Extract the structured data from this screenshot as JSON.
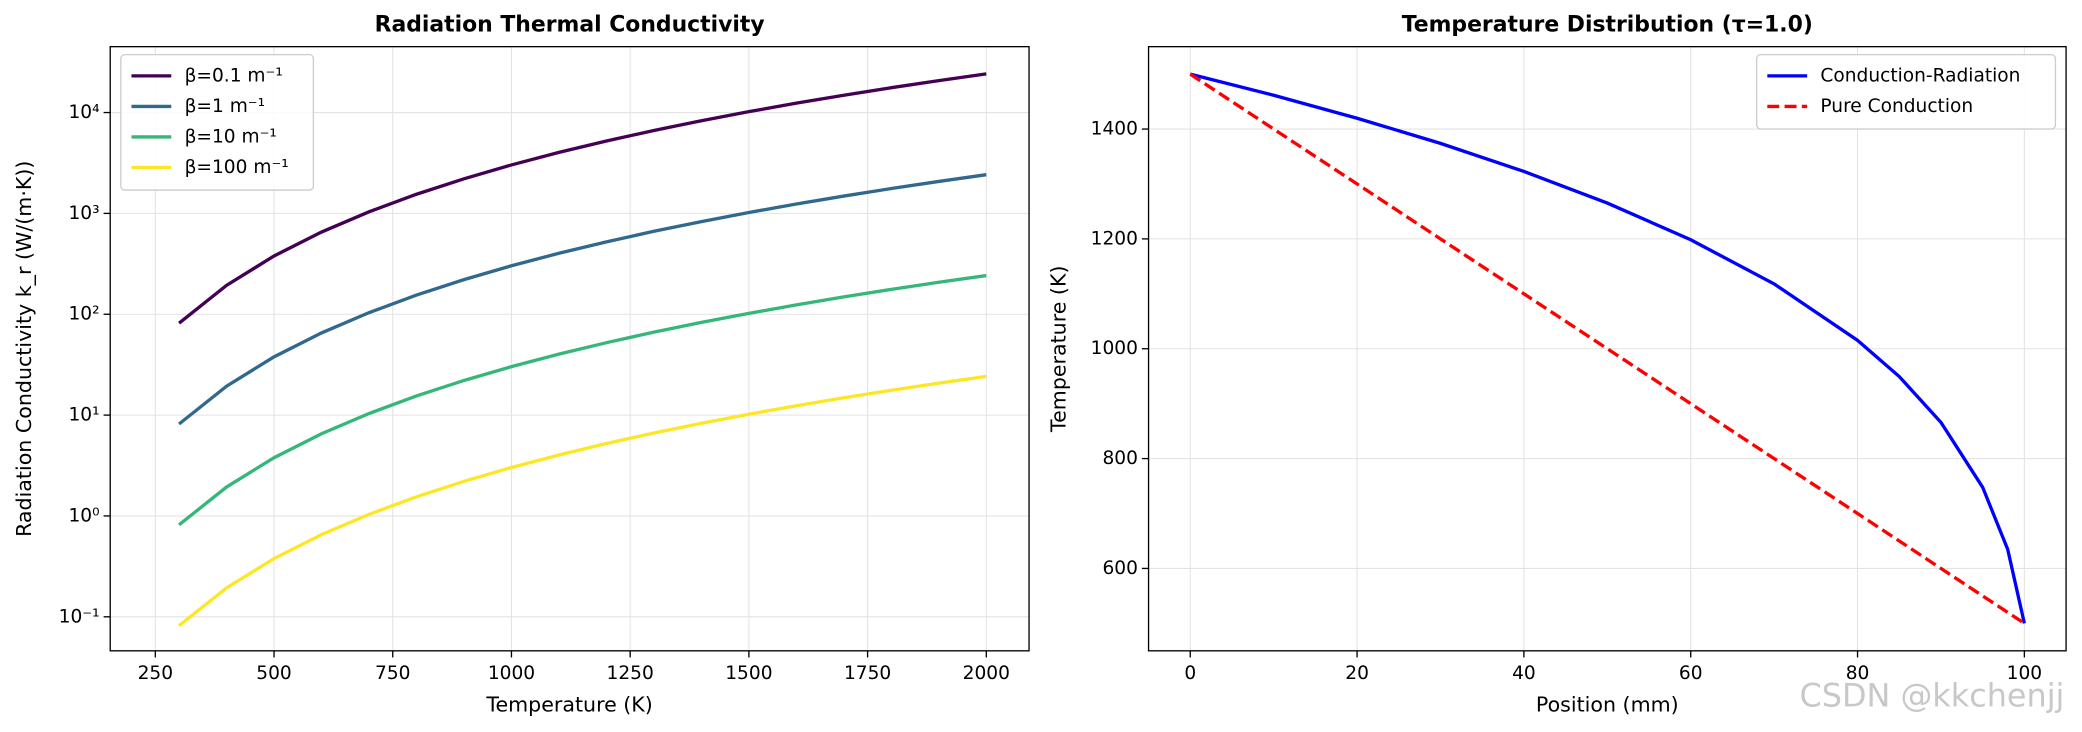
{
  "chart_data": [
    {
      "type": "line",
      "title": "Radiation Thermal Conductivity",
      "xlabel": "Temperature (K)",
      "ylabel": "Radiation Conductivity k_r (W/(m·K))",
      "ylog": true,
      "grid": true,
      "legend": "upper left",
      "x": [
        300,
        400,
        500,
        600,
        700,
        800,
        900,
        1000,
        1100,
        1200,
        1300,
        1400,
        1500,
        1600,
        1700,
        1800,
        1900,
        2000
      ],
      "series": [
        {
          "name": "β=0.1 m⁻¹",
          "color": "#440154",
          "values": [
            81.6,
            193.5,
            378,
            653,
            1037,
            1548,
            2204,
            3024,
            4025,
            5225,
            6644,
            8298,
            10206,
            12386,
            14857,
            17636,
            20742,
            24192
          ]
        },
        {
          "name": "β=1 m⁻¹",
          "color": "#31688e",
          "values": [
            8.16,
            19.35,
            37.8,
            65.3,
            103.7,
            154.8,
            220.4,
            302.4,
            402.5,
            522.5,
            664.4,
            829.8,
            1020.6,
            1238.6,
            1485.7,
            1763.6,
            2074.2,
            2419.2
          ]
        },
        {
          "name": "β=10 m⁻¹",
          "color": "#35b779",
          "values": [
            0.816,
            1.935,
            3.78,
            6.53,
            10.37,
            15.48,
            22.04,
            30.24,
            40.25,
            52.25,
            66.44,
            82.98,
            102.06,
            123.86,
            148.57,
            176.36,
            207.42,
            241.92
          ]
        },
        {
          "name": "β=100 m⁻¹",
          "color": "#fde725",
          "values": [
            0.0816,
            0.1935,
            0.378,
            0.653,
            1.037,
            1.548,
            2.204,
            3.024,
            4.025,
            5.225,
            6.644,
            8.298,
            10.206,
            12.386,
            14.857,
            17.636,
            20.742,
            24.192
          ]
        }
      ],
      "xlim": [
        155,
        2090
      ],
      "xticks": [
        250,
        500,
        750,
        1000,
        1250,
        1500,
        1750,
        2000
      ],
      "ylim": [
        0.046,
        45000
      ],
      "yticks": [
        {
          "value": 0.1,
          "label": "10⁻¹"
        },
        {
          "value": 1,
          "label": "10⁰"
        },
        {
          "value": 10,
          "label": "10¹"
        },
        {
          "value": 100,
          "label": "10²"
        },
        {
          "value": 1000,
          "label": "10³"
        },
        {
          "value": 10000,
          "label": "10⁴"
        }
      ]
    },
    {
      "type": "line",
      "title": "Temperature Distribution (τ=1.0)",
      "xlabel": "Position (mm)",
      "ylabel": "Temperature (K)",
      "ylog": false,
      "grid": true,
      "legend": "upper right",
      "series": [
        {
          "name": "Conduction-Radiation",
          "color": "#0000ff",
          "linestyle": "solid",
          "x": [
            0,
            10,
            20,
            30,
            40,
            50,
            60,
            70,
            80,
            85,
            90,
            95,
            98,
            100
          ],
          "values": [
            1500,
            1461.5,
            1419.7,
            1373.9,
            1322.9,
            1265.2,
            1198.4,
            1118.0,
            1015.3,
            949.4,
            866.0,
            747.7,
            634.9,
            500
          ]
        },
        {
          "name": "Pure Conduction",
          "color": "#ff0000",
          "linestyle": "dashed",
          "x": [
            0,
            100
          ],
          "values": [
            1500,
            500
          ]
        }
      ],
      "xlim": [
        -5,
        105
      ],
      "xticks": [
        0,
        20,
        40,
        60,
        80,
        100
      ],
      "ylim": [
        450,
        1550
      ],
      "yticks": [
        600,
        800,
        1000,
        1200,
        1400
      ]
    }
  ],
  "watermark": "CSDN @kkchenjj"
}
